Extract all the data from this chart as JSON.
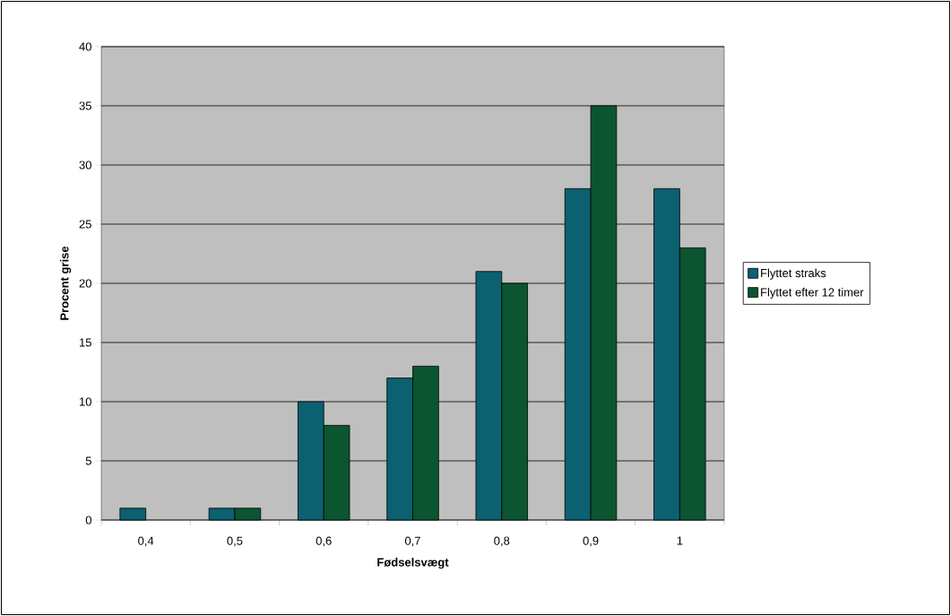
{
  "chart_data": {
    "type": "bar",
    "xlabel": "Fødselsvægt",
    "ylabel": "Procent grise",
    "categories": [
      "0,4",
      "0,5",
      "0,6",
      "0,7",
      "0,8",
      "0,9",
      "1"
    ],
    "series": [
      {
        "name": "Flyttet straks",
        "color": "#0b6170",
        "values": [
          1,
          1,
          10,
          12,
          21,
          28,
          28
        ]
      },
      {
        "name": "Flyttet efter 12 timer",
        "color": "#0b5530",
        "values": [
          null,
          1,
          8,
          13,
          20,
          35,
          23
        ]
      }
    ],
    "ylim": [
      0,
      40
    ],
    "yticks": [
      0,
      5,
      10,
      15,
      20,
      25,
      30,
      35,
      40
    ],
    "grid": "y",
    "legend": "right"
  }
}
